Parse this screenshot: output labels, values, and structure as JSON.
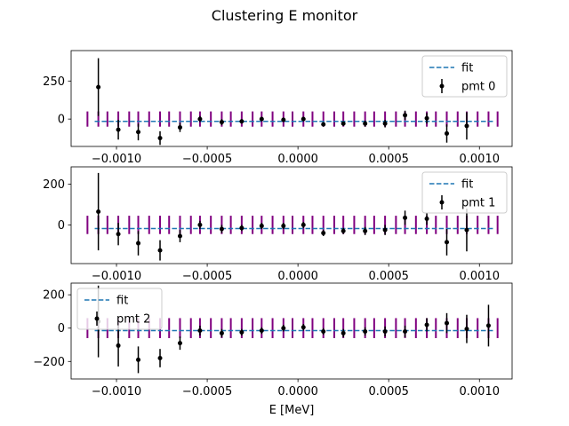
{
  "figure": {
    "title": "Clustering E monitor",
    "xlabel": "E [MeV]"
  },
  "colors": {
    "fit": "#1f77b4",
    "points": "#000000",
    "ticks": "#800080"
  },
  "chart_data": [
    {
      "type": "scatter",
      "title": "",
      "xlabel": "",
      "ylabel": "",
      "xlim": [
        -0.00125,
        0.00118
      ],
      "ylim": [
        -180,
        450
      ],
      "xticks": [
        -0.001,
        -0.0005,
        0.0,
        0.0005,
        0.001
      ],
      "xtick_labels": [
        "−0.0010",
        "−0.0005",
        "0.0000",
        "0.0005",
        "0.0010"
      ],
      "yticks": [
        0,
        250
      ],
      "ytick_labels": [
        "0",
        "250"
      ],
      "legend": {
        "position": "top-right",
        "entries": [
          {
            "label": "fit",
            "kind": "line"
          },
          {
            "label": "pmt 0",
            "kind": "errorbar"
          }
        ]
      },
      "fit": {
        "y": -15,
        "x_range": [
          -0.00112,
          0.00108
        ]
      },
      "bin_edges": [
        -0.00116,
        -0.0011,
        -0.00105,
        -0.00099,
        -0.00093,
        -0.00088,
        -0.00082,
        -0.00076,
        -0.00071,
        -0.00065,
        -0.00059,
        -0.00054,
        -0.00048,
        -0.00042,
        -0.00037,
        -0.00031,
        -0.00025,
        -0.0002,
        -0.00014,
        -8e-05,
        -3e-05,
        3e-05,
        8e-05,
        0.00014,
        0.0002,
        0.00025,
        0.00031,
        0.00037,
        0.00042,
        0.00048,
        0.00054,
        0.00059,
        0.00065,
        0.00071,
        0.00076,
        0.00082,
        0.00088,
        0.00093,
        0.00099,
        0.00105,
        0.0011
      ],
      "bin_tick_range": [
        -50,
        50
      ],
      "series": [
        {
          "name": "pmt 0",
          "x": [
            -0.0011,
            -0.00099,
            -0.00088,
            -0.00076,
            -0.00065,
            -0.00054,
            -0.00042,
            -0.00031,
            -0.0002,
            -8e-05,
            3e-05,
            0.00014,
            0.00025,
            0.00037,
            0.00048,
            0.00059,
            0.00071,
            0.00082,
            0.00093
          ],
          "y": [
            210,
            -70,
            -85,
            -125,
            -55,
            0,
            -20,
            -15,
            0,
            -5,
            0,
            -35,
            -30,
            -30,
            -30,
            25,
            5,
            -95,
            -45
          ],
          "err": [
            190,
            65,
            55,
            45,
            30,
            20,
            20,
            15,
            15,
            15,
            15,
            15,
            15,
            20,
            25,
            30,
            35,
            60,
            90
          ]
        }
      ]
    },
    {
      "type": "scatter",
      "title": "",
      "xlabel": "",
      "ylabel": "",
      "xlim": [
        -0.00125,
        0.00118
      ],
      "ylim": [
        -190,
        285
      ],
      "xticks": [
        -0.001,
        -0.0005,
        0.0,
        0.0005,
        0.001
      ],
      "xtick_labels": [
        "−0.0010",
        "−0.0005",
        "0.0000",
        "0.0005",
        "0.0010"
      ],
      "yticks": [
        0,
        200
      ],
      "ytick_labels": [
        "0",
        "200"
      ],
      "legend": {
        "position": "top-right",
        "entries": [
          {
            "label": "fit",
            "kind": "line"
          },
          {
            "label": "pmt 1",
            "kind": "errorbar"
          }
        ]
      },
      "fit": {
        "y": -18,
        "x_range": [
          -0.00112,
          0.00108
        ]
      },
      "bin_edges": [
        -0.00116,
        -0.0011,
        -0.00105,
        -0.00099,
        -0.00093,
        -0.00088,
        -0.00082,
        -0.00076,
        -0.00071,
        -0.00065,
        -0.00059,
        -0.00054,
        -0.00048,
        -0.00042,
        -0.00037,
        -0.00031,
        -0.00025,
        -0.0002,
        -0.00014,
        -8e-05,
        -3e-05,
        3e-05,
        8e-05,
        0.00014,
        0.0002,
        0.00025,
        0.00031,
        0.00037,
        0.00042,
        0.00048,
        0.00054,
        0.00059,
        0.00065,
        0.00071,
        0.00076,
        0.00082,
        0.00088,
        0.00093,
        0.00099,
        0.00105,
        0.0011
      ],
      "bin_tick_range": [
        -45,
        45
      ],
      "series": [
        {
          "name": "pmt 1",
          "x": [
            -0.0011,
            -0.00099,
            -0.00088,
            -0.00076,
            -0.00065,
            -0.00054,
            -0.00042,
            -0.00031,
            -0.0002,
            -8e-05,
            3e-05,
            0.00014,
            0.00025,
            0.00037,
            0.00048,
            0.00059,
            0.00071,
            0.00082,
            0.00093
          ],
          "y": [
            65,
            -45,
            -90,
            -125,
            -55,
            0,
            -20,
            -15,
            -5,
            -5,
            0,
            -40,
            -30,
            -30,
            -25,
            35,
            30,
            -85,
            -25
          ],
          "err": [
            190,
            55,
            60,
            50,
            30,
            20,
            20,
            15,
            15,
            15,
            15,
            15,
            15,
            20,
            25,
            35,
            30,
            65,
            105
          ]
        }
      ]
    },
    {
      "type": "scatter",
      "title": "",
      "xlabel": "E [MeV]",
      "ylabel": "",
      "xlim": [
        -0.00125,
        0.00118
      ],
      "ylim": [
        -305,
        270
      ],
      "xticks": [
        -0.001,
        -0.0005,
        0.0,
        0.0005,
        0.001
      ],
      "xtick_labels": [
        "−0.0010",
        "−0.0005",
        "0.0000",
        "0.0005",
        "0.0010"
      ],
      "yticks": [
        -200,
        0,
        200
      ],
      "ytick_labels": [
        "−200",
        "0",
        "200"
      ],
      "legend": {
        "position": "top-left",
        "entries": [
          {
            "label": "fit",
            "kind": "line"
          },
          {
            "label": "pmt 2",
            "kind": "errorbar"
          }
        ]
      },
      "fit": {
        "y": -15,
        "x_range": [
          -0.00112,
          0.00108
        ]
      },
      "bin_edges": [
        -0.00116,
        -0.0011,
        -0.00105,
        -0.00099,
        -0.00093,
        -0.00088,
        -0.00082,
        -0.00076,
        -0.00071,
        -0.00065,
        -0.00059,
        -0.00054,
        -0.00048,
        -0.00042,
        -0.00037,
        -0.00031,
        -0.00025,
        -0.0002,
        -0.00014,
        -8e-05,
        -3e-05,
        3e-05,
        8e-05,
        0.00014,
        0.0002,
        0.00025,
        0.00031,
        0.00037,
        0.00042,
        0.00048,
        0.00054,
        0.00059,
        0.00065,
        0.00071,
        0.00076,
        0.00082,
        0.00088,
        0.00093,
        0.00099,
        0.00105,
        0.0011
      ],
      "bin_tick_range": [
        -60,
        60
      ],
      "series": [
        {
          "name": "pmt 2",
          "x": [
            -0.0011,
            -0.00099,
            -0.00088,
            -0.00076,
            -0.00065,
            -0.00054,
            -0.00042,
            -0.00031,
            -0.0002,
            -8e-05,
            3e-05,
            0.00014,
            0.00025,
            0.00037,
            0.00048,
            0.00059,
            0.00071,
            0.00082,
            0.00093,
            0.00105
          ],
          "y": [
            40,
            -105,
            -190,
            -180,
            -90,
            -15,
            -30,
            -25,
            -15,
            0,
            5,
            -20,
            -30,
            -20,
            -20,
            -20,
            20,
            30,
            -5,
            15
          ],
          "err": [
            215,
            125,
            80,
            55,
            40,
            30,
            25,
            20,
            20,
            20,
            20,
            20,
            25,
            25,
            30,
            35,
            40,
            60,
            85,
            125
          ]
        }
      ]
    }
  ]
}
